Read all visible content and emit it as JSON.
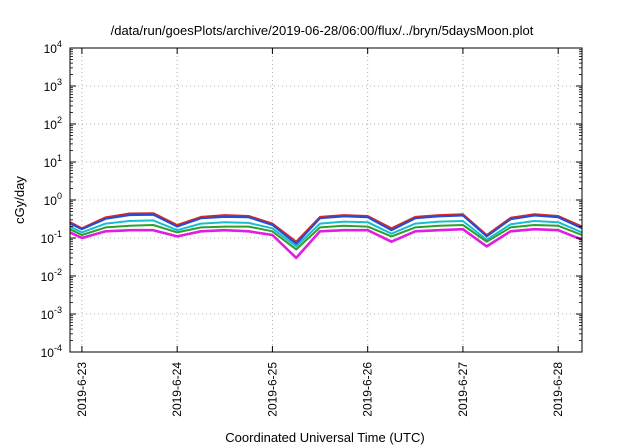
{
  "chart_data": {
    "type": "line",
    "title": "/data/run/goesPlots/archive/2019-06-28/06:00/flux/../bryn/5daysMoon.plot",
    "xlabel": "Coordinated Universal Time (UTC)",
    "ylabel": "cGy/day",
    "yscale": "log",
    "ylim": [
      0.0001,
      10000
    ],
    "xlim": [
      "2019-06-22T21:00",
      "2019-06-28T06:00"
    ],
    "grid": true,
    "y_tick_labels": [
      {
        "base": "10",
        "exp": "-4"
      },
      {
        "base": "10",
        "exp": "-3"
      },
      {
        "base": "10",
        "exp": "-2"
      },
      {
        "base": "10",
        "exp": "-1"
      },
      {
        "base": "10",
        "exp": "0"
      },
      {
        "base": "10",
        "exp": "1"
      },
      {
        "base": "10",
        "exp": "2"
      },
      {
        "base": "10",
        "exp": "3"
      },
      {
        "base": "10",
        "exp": "4"
      }
    ],
    "x_tick_labels": [
      "2019-6-23",
      "2019-6-24",
      "2019-6-25",
      "2019-6-26",
      "2019-6-27",
      "2019-6-28"
    ],
    "series": [
      {
        "color": "#d62728",
        "x": [
          "2019-06-22T21:00",
          "2019-06-23T00:00",
          "2019-06-23T06:00",
          "2019-06-23T12:00",
          "2019-06-23T18:00",
          "2019-06-24T00:00",
          "2019-06-24T06:00",
          "2019-06-24T12:00",
          "2019-06-24T18:00",
          "2019-06-25T00:00",
          "2019-06-25T06:00",
          "2019-06-25T12:00",
          "2019-06-25T18:00",
          "2019-06-26T00:00",
          "2019-06-26T06:00",
          "2019-06-26T12:00",
          "2019-06-26T18:00",
          "2019-06-27T00:00",
          "2019-06-27T06:00",
          "2019-06-27T12:00",
          "2019-06-27T18:00",
          "2019-06-28T00:00",
          "2019-06-28T06:00"
        ],
        "values": [
          0.26,
          0.18,
          0.35,
          0.44,
          0.45,
          0.22,
          0.36,
          0.4,
          0.38,
          0.24,
          0.08,
          0.36,
          0.4,
          0.38,
          0.18,
          0.36,
          0.4,
          0.42,
          0.12,
          0.34,
          0.42,
          0.38,
          0.2
        ]
      },
      {
        "color": "#1f4fd8",
        "x": [
          "2019-06-22T21:00",
          "2019-06-23T00:00",
          "2019-06-23T06:00",
          "2019-06-23T12:00",
          "2019-06-23T18:00",
          "2019-06-24T00:00",
          "2019-06-24T06:00",
          "2019-06-24T12:00",
          "2019-06-24T18:00",
          "2019-06-25T00:00",
          "2019-06-25T06:00",
          "2019-06-25T12:00",
          "2019-06-25T18:00",
          "2019-06-26T00:00",
          "2019-06-26T06:00",
          "2019-06-26T12:00",
          "2019-06-26T18:00",
          "2019-06-27T00:00",
          "2019-06-27T06:00",
          "2019-06-27T12:00",
          "2019-06-27T18:00",
          "2019-06-28T00:00",
          "2019-06-28T06:00"
        ],
        "values": [
          0.24,
          0.17,
          0.32,
          0.4,
          0.41,
          0.2,
          0.33,
          0.36,
          0.35,
          0.22,
          0.07,
          0.33,
          0.37,
          0.35,
          0.16,
          0.33,
          0.37,
          0.39,
          0.11,
          0.31,
          0.39,
          0.35,
          0.18
        ]
      },
      {
        "color": "#17becf",
        "x": [
          "2019-06-22T21:00",
          "2019-06-23T00:00",
          "2019-06-23T06:00",
          "2019-06-23T12:00",
          "2019-06-23T18:00",
          "2019-06-24T00:00",
          "2019-06-24T06:00",
          "2019-06-24T12:00",
          "2019-06-24T18:00",
          "2019-06-25T00:00",
          "2019-06-25T06:00",
          "2019-06-25T12:00",
          "2019-06-25T18:00",
          "2019-06-26T00:00",
          "2019-06-26T06:00",
          "2019-06-26T12:00",
          "2019-06-26T18:00",
          "2019-06-27T00:00",
          "2019-06-27T06:00",
          "2019-06-27T12:00",
          "2019-06-27T18:00",
          "2019-06-28T00:00",
          "2019-06-28T06:00"
        ],
        "values": [
          0.2,
          0.14,
          0.24,
          0.28,
          0.29,
          0.16,
          0.24,
          0.26,
          0.25,
          0.18,
          0.06,
          0.24,
          0.27,
          0.26,
          0.13,
          0.24,
          0.27,
          0.28,
          0.09,
          0.23,
          0.28,
          0.26,
          0.14
        ]
      },
      {
        "color": "#2ca02c",
        "x": [
          "2019-06-22T21:00",
          "2019-06-23T00:00",
          "2019-06-23T06:00",
          "2019-06-23T12:00",
          "2019-06-23T18:00",
          "2019-06-24T00:00",
          "2019-06-24T06:00",
          "2019-06-24T12:00",
          "2019-06-24T18:00",
          "2019-06-25T00:00",
          "2019-06-25T06:00",
          "2019-06-25T12:00",
          "2019-06-25T18:00",
          "2019-06-26T00:00",
          "2019-06-26T06:00",
          "2019-06-26T12:00",
          "2019-06-26T18:00",
          "2019-06-27T00:00",
          "2019-06-27T06:00",
          "2019-06-27T12:00",
          "2019-06-27T18:00",
          "2019-06-28T00:00",
          "2019-06-28T06:00"
        ],
        "values": [
          0.17,
          0.12,
          0.19,
          0.21,
          0.22,
          0.14,
          0.19,
          0.2,
          0.2,
          0.15,
          0.05,
          0.19,
          0.21,
          0.2,
          0.11,
          0.19,
          0.21,
          0.22,
          0.08,
          0.19,
          0.22,
          0.21,
          0.12
        ]
      },
      {
        "color": "#e01ee0",
        "x": [
          "2019-06-22T21:00",
          "2019-06-23T00:00",
          "2019-06-23T06:00",
          "2019-06-23T12:00",
          "2019-06-23T18:00",
          "2019-06-24T00:00",
          "2019-06-24T06:00",
          "2019-06-24T12:00",
          "2019-06-24T18:00",
          "2019-06-25T00:00",
          "2019-06-25T06:00",
          "2019-06-25T12:00",
          "2019-06-25T18:00",
          "2019-06-26T00:00",
          "2019-06-26T06:00",
          "2019-06-26T12:00",
          "2019-06-26T18:00",
          "2019-06-27T00:00",
          "2019-06-27T06:00",
          "2019-06-27T12:00",
          "2019-06-27T18:00",
          "2019-06-28T00:00",
          "2019-06-28T06:00"
        ],
        "values": [
          0.14,
          0.1,
          0.15,
          0.16,
          0.16,
          0.11,
          0.15,
          0.16,
          0.15,
          0.12,
          0.03,
          0.15,
          0.16,
          0.16,
          0.08,
          0.15,
          0.16,
          0.17,
          0.06,
          0.15,
          0.17,
          0.16,
          0.09
        ]
      }
    ]
  }
}
